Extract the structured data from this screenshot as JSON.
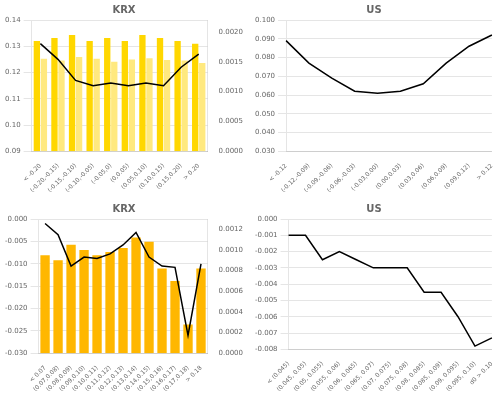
{
  "chart_data": [
    {
      "type": "bar",
      "title": "KRX",
      "categories": [
        "< -0.20",
        "(-0.20,-0.15)",
        "(-0.15,-0.10)",
        "(-0.10,-0.05)",
        "(-0.05,0)",
        "(0,0.05)",
        "(0.05,0.10)",
        "(0.10,0.15)",
        "(0.15,0.20)",
        "> 0.20"
      ],
      "series": [
        {
          "type": "bar",
          "axis": "y2",
          "color": "#FFD700",
          "values": [
            0.00185,
            0.0019,
            0.00195,
            0.00185,
            0.0019,
            0.00185,
            0.00195,
            0.0019,
            0.00185,
            0.0018
          ]
        },
        {
          "type": "bar",
          "axis": "y2",
          "color": "#FFE97F",
          "values": [
            0.00155,
            0.00152,
            0.00158,
            0.00155,
            0.0015,
            0.00154,
            0.00156,
            0.00153,
            0.00152,
            0.00148
          ]
        },
        {
          "type": "line",
          "color": "#000000",
          "values": [
            0.131,
            0.125,
            0.117,
            0.115,
            0.116,
            0.115,
            0.116,
            0.115,
            0.122,
            0.127
          ]
        }
      ],
      "ylim": [
        0.09,
        0.14
      ],
      "yticks": [
        0.09,
        {
          "value": 0.1,
          "label": "0.10"
        },
        0.11,
        0.12,
        0.13,
        0.14
      ],
      "y2lim": [
        0.0,
        0.0022
      ],
      "y2ticks": [
        {
          "value": 0,
          "label": "0.0000"
        },
        {
          "value": 0.0005,
          "label": "0.0005"
        },
        {
          "value": 0.001,
          "label": "0.0010"
        },
        {
          "value": 0.0015,
          "label": "0.0015"
        },
        {
          "value": 0.002,
          "label": "0.0020"
        }
      ],
      "grid": true
    },
    {
      "type": "line",
      "title": "US",
      "categories": [
        "< -0.12",
        "(-0.12,-0.09)",
        "(-0.09,-0.06)",
        "(-0.06,-0.03)",
        "(-0.03,0.00)",
        "(0.00,0.03)",
        "(0.03,0.06)",
        "(0.06,0.09)",
        "(0.09,0.12)",
        "> 0.12"
      ],
      "values": [
        0.089,
        0.077,
        0.069,
        0.062,
        0.061,
        0.062,
        0.066,
        0.077,
        0.086,
        0.092
      ],
      "color": "#000000",
      "ylim": [
        0.03,
        0.1
      ],
      "yticks": [
        {
          "value": 0.03,
          "label": "0.030"
        },
        {
          "value": 0.04,
          "label": "0.040"
        },
        {
          "value": 0.05,
          "label": "0.050"
        },
        {
          "value": 0.06,
          "label": "0.060"
        },
        {
          "value": 0.07,
          "label": "0.070"
        },
        {
          "value": 0.08,
          "label": "0.080"
        },
        {
          "value": 0.09,
          "label": "0.090"
        },
        {
          "value": 0.1,
          "label": "0.100"
        }
      ],
      "grid": true
    },
    {
      "type": "bar",
      "title": "KRX",
      "categories": [
        "< 0.07",
        "(0.07,0.08)",
        "(0.08,0.09)",
        "(0.09,0.10)",
        "(0.10,0.11)",
        "(0.11,0.12)",
        "(0.12,0.13)",
        "(0.13,0.14)",
        "(0.14,0.15)",
        "(0.15,0.16)",
        "(0.16,0.17)",
        "(0.17,0.18)",
        "> 0.18"
      ],
      "series": [
        {
          "type": "bar",
          "axis": "y2",
          "color": "#FFB700",
          "values": [
            0.00095,
            0.0009,
            0.00105,
            0.001,
            0.00095,
            0.00098,
            0.00102,
            0.00112,
            0.00108,
            0.00082,
            0.0007,
            0.00028,
            0.00082
          ]
        },
        {
          "type": "line",
          "color": "#000000",
          "values": [
            -0.001,
            -0.0035,
            -0.0105,
            -0.0085,
            -0.0088,
            -0.0078,
            -0.0058,
            -0.003,
            -0.0085,
            -0.0105,
            -0.0108,
            -0.026,
            -0.01
          ]
        }
      ],
      "ylim": [
        -0.03,
        0.0
      ],
      "yticks": [
        {
          "value": -0.03,
          "label": "-0.030"
        },
        -0.025,
        {
          "value": -0.02,
          "label": "-0.020"
        },
        -0.015,
        {
          "value": -0.01,
          "label": "-0.010"
        },
        -0.005,
        {
          "value": 0,
          "label": "0.000"
        }
      ],
      "y2lim": [
        0,
        0.0013
      ],
      "y2ticks": [
        {
          "value": 0,
          "label": "0.0000"
        },
        {
          "value": 0.0002,
          "label": "0.0002"
        },
        {
          "value": 0.0004,
          "label": "0.0004"
        },
        {
          "value": 0.0006,
          "label": "0.0006"
        },
        {
          "value": 0.0008,
          "label": "0.0008"
        },
        {
          "value": 0.001,
          "label": "0.0010"
        },
        {
          "value": 0.0012,
          "label": "0.0012"
        }
      ],
      "grid": true
    },
    {
      "type": "line",
      "title": "US",
      "categories": [
        "< (0.045)",
        "(0.045, 0.05)",
        "(0.05, 0.055)",
        "(0.055, 0.06)",
        "(0.06, 0.065)",
        "(0.065, 0.07)",
        "(0.07, 0.075)",
        "(0.075, 0.08)",
        "(0.08, 0.085)",
        "(0.085, 0.09)",
        "(0.09, 0.095)",
        "(0.095, 0.10)",
        "d0 > 0.10"
      ],
      "values": [
        -0.001,
        -0.001,
        -0.0025,
        -0.002,
        -0.0025,
        -0.003,
        -0.003,
        -0.003,
        -0.0045,
        -0.0045,
        -0.006,
        -0.0078,
        -0.0073
      ],
      "color": "#000000",
      "ylim": [
        -0.008,
        0.0
      ],
      "yticks": [
        -0.008,
        -0.007,
        -0.006,
        -0.005,
        -0.004,
        -0.003,
        -0.002,
        -0.001,
        {
          "value": 0,
          "label": "0.000"
        }
      ],
      "grid": true
    }
  ]
}
